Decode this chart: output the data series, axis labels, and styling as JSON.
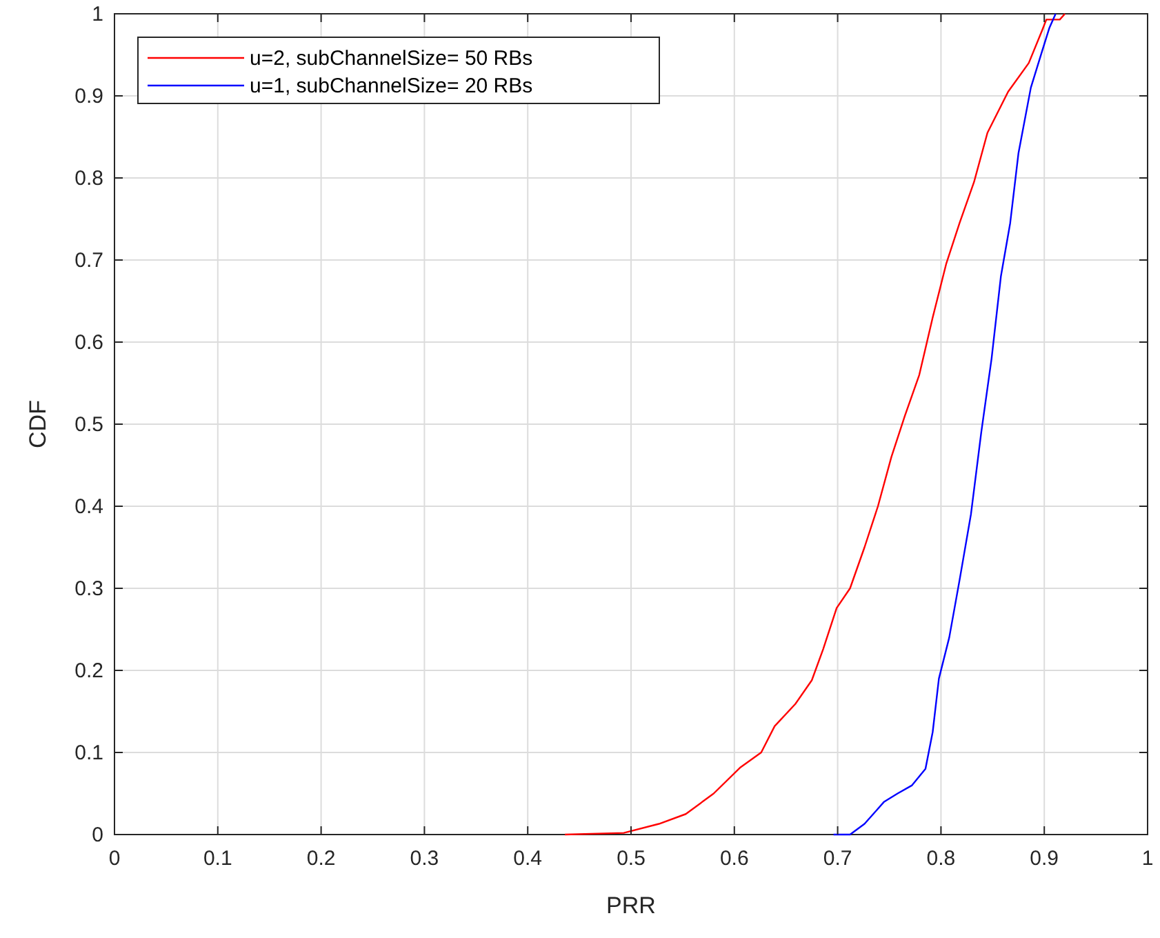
{
  "chart_data": {
    "type": "line",
    "xlabel": "PRR",
    "ylabel": "CDF",
    "xlim": [
      0,
      1
    ],
    "ylim": [
      0,
      1
    ],
    "xticks": [
      0,
      0.1,
      0.2,
      0.3,
      0.4,
      0.5,
      0.6,
      0.7,
      0.8,
      0.9,
      1
    ],
    "yticks": [
      0,
      0.1,
      0.2,
      0.3,
      0.4,
      0.5,
      0.6,
      0.7,
      0.8,
      0.9,
      1
    ],
    "grid": true,
    "legend": "top left",
    "series": [
      {
        "name": "u=2, subChannelSize= 50 RBs",
        "color": "#ff0000",
        "x": [
          0.436,
          0.493,
          0.527,
          0.553,
          0.58,
          0.606,
          0.626,
          0.639,
          0.659,
          0.675,
          0.686,
          0.699,
          0.712,
          0.726,
          0.739,
          0.752,
          0.765,
          0.779,
          0.792,
          0.805,
          0.818,
          0.832,
          0.845,
          0.865,
          0.885,
          0.898,
          0.902,
          0.915,
          0.92
        ],
        "values": [
          0,
          0.002,
          0.013,
          0.025,
          0.05,
          0.082,
          0.1,
          0.132,
          0.159,
          0.188,
          0.226,
          0.276,
          0.3,
          0.35,
          0.4,
          0.46,
          0.51,
          0.56,
          0.63,
          0.695,
          0.745,
          0.795,
          0.855,
          0.905,
          0.94,
          0.98,
          0.993,
          0.993,
          1
        ]
      },
      {
        "name": "u=1, subChannelSize= 20 RBs",
        "color": "#0000ff",
        "x": [
          0.696,
          0.712,
          0.726,
          0.745,
          0.758,
          0.772,
          0.785,
          0.792,
          0.798,
          0.808,
          0.818,
          0.829,
          0.839,
          0.849,
          0.858,
          0.867,
          0.875,
          0.887,
          0.898,
          0.905,
          0.911
        ],
        "values": [
          0,
          0,
          0.013,
          0.04,
          0.05,
          0.06,
          0.08,
          0.125,
          0.19,
          0.24,
          0.31,
          0.39,
          0.49,
          0.58,
          0.68,
          0.745,
          0.83,
          0.91,
          0.955,
          0.983,
          1
        ]
      }
    ]
  }
}
